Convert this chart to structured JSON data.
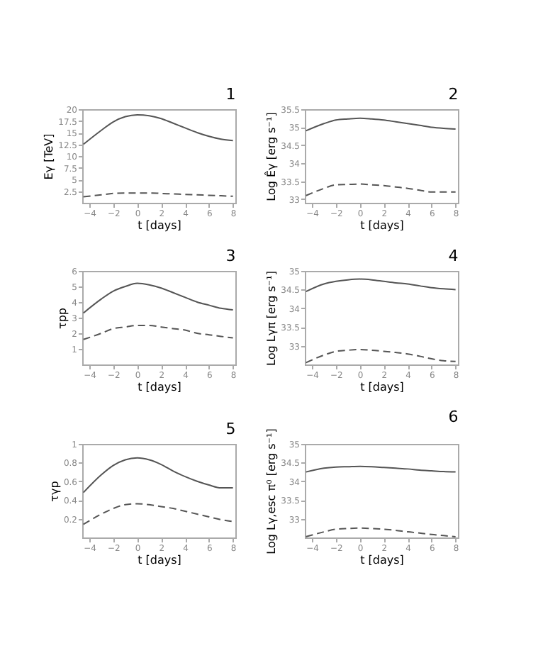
{
  "chart_data": [
    {
      "type": "line",
      "title": "1",
      "xlabel": "t [days]",
      "ylabel": "Eγ [TeV]",
      "x": [
        -4.5,
        -3,
        -2,
        -1,
        0,
        1,
        2,
        3,
        4,
        5,
        6,
        7,
        8
      ],
      "xlim": [
        -4.6,
        8.2
      ],
      "xticks": [
        -4,
        -2,
        0,
        2,
        4,
        6,
        8
      ],
      "ylim": [
        0,
        20
      ],
      "yticks": [
        2.5,
        5,
        7.5,
        10,
        12.5,
        15,
        17.5,
        20
      ],
      "grid": false,
      "series": [
        {
          "color": "#555555",
          "line_style": "solid",
          "values": [
            12.5,
            15.5,
            17.3,
            18.4,
            18.8,
            18.6,
            18,
            17,
            16,
            15,
            14.2,
            13.6,
            13.3
          ]
        },
        {
          "color": "#555555",
          "line_style": "dashed",
          "values": [
            1.3,
            1.7,
            2.0,
            2.1,
            2.1,
            2.1,
            2.0,
            1.9,
            1.8,
            1.7,
            1.6,
            1.5,
            1.4
          ]
        }
      ]
    },
    {
      "type": "line",
      "title": "2",
      "xlabel": "t [days]",
      "ylabel": "Log Êγ [erg s⁻¹]",
      "x": [
        -4.5,
        -3,
        -2,
        -1,
        0,
        1,
        2,
        3,
        4,
        5,
        6,
        7,
        8
      ],
      "xlim": [
        -4.6,
        8.2
      ],
      "xticks": [
        -4,
        -2,
        0,
        2,
        4,
        6,
        8
      ],
      "ylim": [
        32.9,
        35.5
      ],
      "yticks": [
        33,
        33.5,
        34,
        34.5,
        35,
        35.5
      ],
      "grid": false,
      "series": [
        {
          "color": "#555555",
          "line_style": "solid",
          "values": [
            34.9,
            35.1,
            35.2,
            35.23,
            35.25,
            35.23,
            35.2,
            35.15,
            35.1,
            35.05,
            35.0,
            34.97,
            34.95
          ]
        },
        {
          "color": "#555555",
          "line_style": "dashed",
          "values": [
            33.1,
            33.3,
            33.4,
            33.41,
            33.42,
            33.4,
            33.38,
            33.34,
            33.3,
            33.25,
            33.2,
            33.2,
            33.2
          ]
        }
      ]
    },
    {
      "type": "line",
      "title": "3",
      "xlabel": "t [days]",
      "ylabel": "τpp",
      "x": [
        -4.5,
        -3,
        -2,
        -1,
        0,
        1,
        2,
        3,
        4,
        5,
        6,
        7,
        8
      ],
      "xlim": [
        -4.6,
        8.2
      ],
      "xticks": [
        -4,
        -2,
        0,
        2,
        4,
        6,
        8
      ],
      "ylim": [
        0,
        6
      ],
      "yticks": [
        1,
        2,
        3,
        4,
        5,
        6
      ],
      "grid": false,
      "series": [
        {
          "color": "#555555",
          "line_style": "solid",
          "values": [
            3.3,
            4.2,
            4.7,
            5.0,
            5.2,
            5.1,
            4.9,
            4.6,
            4.3,
            4.0,
            3.8,
            3.6,
            3.5
          ]
        },
        {
          "color": "#555555",
          "line_style": "dashed",
          "values": [
            1.6,
            2.0,
            2.3,
            2.4,
            2.5,
            2.5,
            2.4,
            2.3,
            2.2,
            2.0,
            1.9,
            1.8,
            1.7
          ]
        }
      ]
    },
    {
      "type": "line",
      "title": "4",
      "xlabel": "t [days]",
      "ylabel": "Log Lγπ [erg s⁻¹]",
      "x": [
        -4.5,
        -3,
        -2,
        -1,
        0,
        1,
        2,
        3,
        4,
        5,
        6,
        7,
        8
      ],
      "xlim": [
        -4.6,
        8.2
      ],
      "xticks": [
        -4,
        -2,
        0,
        2,
        4,
        6,
        8
      ],
      "ylim": [
        32.5,
        35
      ],
      "yticks": [
        33,
        33.5,
        34,
        34.5,
        35
      ],
      "grid": false,
      "series": [
        {
          "color": "#555555",
          "line_style": "solid",
          "values": [
            34.45,
            34.65,
            34.72,
            34.76,
            34.78,
            34.76,
            34.72,
            34.68,
            34.65,
            34.6,
            34.55,
            34.52,
            34.5
          ]
        },
        {
          "color": "#555555",
          "line_style": "dashed",
          "values": [
            32.55,
            32.75,
            32.85,
            32.88,
            32.9,
            32.88,
            32.85,
            32.82,
            32.78,
            32.72,
            32.65,
            32.6,
            32.58
          ]
        }
      ]
    },
    {
      "type": "line",
      "title": "5",
      "xlabel": "t [days]",
      "ylabel": "τγp",
      "x": [
        -4.5,
        -3,
        -2,
        -1,
        0,
        1,
        2,
        3,
        4,
        5,
        6,
        7,
        8
      ],
      "xlim": [
        -4.6,
        8.2
      ],
      "xticks": [
        -4,
        -2,
        0,
        2,
        4,
        6,
        8
      ],
      "ylim": [
        0,
        1
      ],
      "yticks": [
        0.2,
        0.4,
        0.6,
        0.8,
        1
      ],
      "grid": false,
      "series": [
        {
          "color": "#555555",
          "line_style": "solid",
          "values": [
            0.48,
            0.67,
            0.77,
            0.83,
            0.85,
            0.83,
            0.78,
            0.71,
            0.65,
            0.6,
            0.56,
            0.53,
            0.53
          ]
        },
        {
          "color": "#555555",
          "line_style": "dashed",
          "values": [
            0.14,
            0.25,
            0.31,
            0.35,
            0.36,
            0.35,
            0.33,
            0.31,
            0.28,
            0.25,
            0.22,
            0.19,
            0.17
          ]
        }
      ]
    },
    {
      "type": "line",
      "title": "6",
      "xlabel": "t [days]",
      "ylabel": "Log Lγ,esc π⁰ [erg s⁻¹]",
      "x": [
        -4.5,
        -3,
        -2,
        -1,
        0,
        1,
        2,
        3,
        4,
        5,
        6,
        7,
        8
      ],
      "xlim": [
        -4.6,
        8.2
      ],
      "xticks": [
        -4,
        -2,
        0,
        2,
        4,
        6,
        8
      ],
      "ylim": [
        32.5,
        35
      ],
      "yticks": [
        33,
        33.5,
        34,
        34.5,
        35
      ],
      "grid": false,
      "series": [
        {
          "color": "#555555",
          "line_style": "solid",
          "values": [
            34.25,
            34.35,
            34.38,
            34.39,
            34.4,
            34.39,
            34.37,
            34.35,
            34.33,
            34.3,
            34.28,
            34.26,
            34.25
          ]
        },
        {
          "color": "#555555",
          "line_style": "dashed",
          "values": [
            32.52,
            32.65,
            32.72,
            32.74,
            32.75,
            32.74,
            32.72,
            32.69,
            32.65,
            32.62,
            32.58,
            32.55,
            32.52
          ]
        }
      ]
    }
  ]
}
